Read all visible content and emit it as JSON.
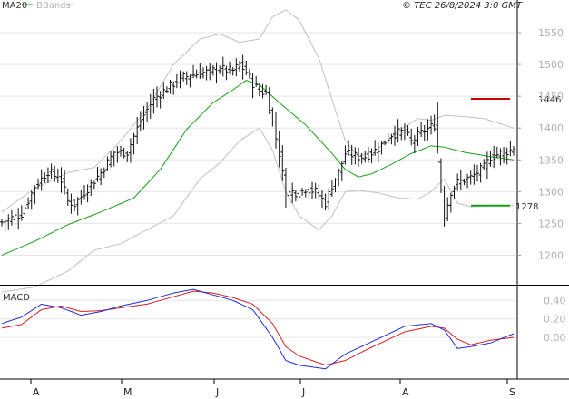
{
  "header": {
    "legend_ma": "MA20",
    "legend_bb": "BBands",
    "copyright": "© TEC 26/8/2024 3:0 GMT"
  },
  "colors": {
    "price": "#111111",
    "ma20": "#19a019",
    "bbands": "#c0c0c0",
    "grid": "#e6e6e6",
    "resistance": "#cc0000",
    "support": "#19a019",
    "macd": "#1f2fd6",
    "signal": "#d61f1f"
  },
  "chart_data": [
    {
      "type": "ohlc",
      "x_ticks": [
        "A",
        "M",
        "J",
        "J",
        "A",
        "S"
      ],
      "y_ticks": [
        1200,
        1250,
        1300,
        1350,
        1400,
        1450,
        1500,
        1550
      ],
      "ylim": [
        1155,
        1580
      ],
      "levels": [
        {
          "label": "1446",
          "value": 1446,
          "kind": "resistance"
        },
        {
          "label": "1278",
          "value": 1278,
          "kind": "support"
        }
      ],
      "price_anchors": [
        [
          0,
          1252
        ],
        [
          6,
          1265
        ],
        [
          10,
          1308
        ],
        [
          14,
          1332
        ],
        [
          18,
          1318
        ],
        [
          20,
          1285
        ],
        [
          22,
          1280
        ],
        [
          26,
          1305
        ],
        [
          30,
          1330
        ],
        [
          34,
          1362
        ],
        [
          38,
          1362
        ],
        [
          42,
          1412
        ],
        [
          46,
          1446
        ],
        [
          50,
          1462
        ],
        [
          54,
          1478
        ],
        [
          58,
          1484
        ],
        [
          62,
          1488
        ],
        [
          66,
          1493
        ],
        [
          70,
          1490
        ],
        [
          72,
          1500
        ],
        [
          74,
          1488
        ],
        [
          76,
          1470
        ],
        [
          78,
          1458
        ],
        [
          80,
          1455
        ],
        [
          82,
          1408
        ],
        [
          84,
          1360
        ],
        [
          86,
          1295
        ],
        [
          88,
          1300
        ],
        [
          90,
          1298
        ],
        [
          92,
          1305
        ],
        [
          95,
          1300
        ],
        [
          98,
          1282
        ],
        [
          100,
          1310
        ],
        [
          102,
          1330
        ],
        [
          104,
          1360
        ],
        [
          108,
          1355
        ],
        [
          110,
          1355
        ],
        [
          114,
          1368
        ],
        [
          118,
          1390
        ],
        [
          122,
          1395
        ],
        [
          124,
          1378
        ],
        [
          126,
          1388
        ],
        [
          128,
          1396
        ],
        [
          130,
          1402
        ],
        [
          131,
          1405
        ],
        [
          132,
          1348
        ],
        [
          134,
          1262
        ],
        [
          136,
          1300
        ],
        [
          138,
          1315
        ],
        [
          142,
          1322
        ],
        [
          146,
          1338
        ],
        [
          148,
          1355
        ],
        [
          152,
          1362
        ],
        [
          154,
          1365
        ],
        [
          155,
          1370
        ]
      ],
      "ma20_anchors": [
        [
          0,
          1200
        ],
        [
          10,
          1222
        ],
        [
          20,
          1248
        ],
        [
          30,
          1268
        ],
        [
          40,
          1290
        ],
        [
          48,
          1335
        ],
        [
          56,
          1398
        ],
        [
          64,
          1440
        ],
        [
          70,
          1460
        ],
        [
          74,
          1475
        ],
        [
          78,
          1468
        ],
        [
          84,
          1440
        ],
        [
          92,
          1405
        ],
        [
          100,
          1360
        ],
        [
          104,
          1335
        ],
        [
          108,
          1323
        ],
        [
          112,
          1328
        ],
        [
          118,
          1343
        ],
        [
          124,
          1360
        ],
        [
          130,
          1372
        ],
        [
          134,
          1370
        ],
        [
          140,
          1362
        ],
        [
          148,
          1355
        ],
        [
          155,
          1350
        ]
      ],
      "bb_upper_anchors": [
        [
          0,
          1268
        ],
        [
          10,
          1305
        ],
        [
          20,
          1330
        ],
        [
          28,
          1338
        ],
        [
          36,
          1380
        ],
        [
          44,
          1430
        ],
        [
          52,
          1500
        ],
        [
          60,
          1540
        ],
        [
          66,
          1548
        ],
        [
          72,
          1535
        ],
        [
          78,
          1540
        ],
        [
          82,
          1575
        ],
        [
          86,
          1586
        ],
        [
          90,
          1570
        ],
        [
          96,
          1510
        ],
        [
          100,
          1445
        ],
        [
          104,
          1380
        ],
        [
          108,
          1355
        ],
        [
          114,
          1368
        ],
        [
          120,
          1395
        ],
        [
          126,
          1415
        ],
        [
          130,
          1412
        ],
        [
          134,
          1420
        ],
        [
          140,
          1418
        ],
        [
          146,
          1415
        ],
        [
          155,
          1400
        ]
      ],
      "bb_lower_anchors": [
        [
          0,
          1142
        ],
        [
          10,
          1150
        ],
        [
          20,
          1175
        ],
        [
          28,
          1208
        ],
        [
          36,
          1218
        ],
        [
          44,
          1240
        ],
        [
          52,
          1262
        ],
        [
          60,
          1320
        ],
        [
          66,
          1345
        ],
        [
          72,
          1380
        ],
        [
          78,
          1400
        ],
        [
          82,
          1365
        ],
        [
          86,
          1300
        ],
        [
          90,
          1262
        ],
        [
          96,
          1240
        ],
        [
          100,
          1262
        ],
        [
          104,
          1300
        ],
        [
          108,
          1302
        ],
        [
          114,
          1298
        ],
        [
          120,
          1290
        ],
        [
          126,
          1288
        ],
        [
          130,
          1300
        ],
        [
          134,
          1320
        ],
        [
          138,
          1282
        ],
        [
          142,
          1276
        ],
        [
          148,
          1278
        ],
        [
          155,
          1278
        ]
      ]
    },
    {
      "type": "line",
      "title": "MACD",
      "y_ticks": [
        "0.40",
        "0.20",
        "0.00"
      ],
      "y_tick_values": [
        40,
        20,
        0
      ],
      "ylim": [
        -45,
        55
      ],
      "macd_anchors": [
        [
          0,
          15
        ],
        [
          6,
          22
        ],
        [
          12,
          36
        ],
        [
          18,
          32
        ],
        [
          24,
          24
        ],
        [
          30,
          28
        ],
        [
          36,
          34
        ],
        [
          44,
          40
        ],
        [
          52,
          48
        ],
        [
          58,
          52
        ],
        [
          64,
          46
        ],
        [
          70,
          40
        ],
        [
          76,
          30
        ],
        [
          82,
          0
        ],
        [
          86,
          -25
        ],
        [
          90,
          -30
        ],
        [
          98,
          -34
        ],
        [
          104,
          -18
        ],
        [
          110,
          -8
        ],
        [
          116,
          2
        ],
        [
          122,
          12
        ],
        [
          130,
          15
        ],
        [
          134,
          8
        ],
        [
          138,
          -12
        ],
        [
          142,
          -10
        ],
        [
          148,
          -6
        ],
        [
          155,
          4
        ]
      ],
      "signal_anchors": [
        [
          0,
          10
        ],
        [
          6,
          14
        ],
        [
          12,
          30
        ],
        [
          18,
          34
        ],
        [
          24,
          28
        ],
        [
          30,
          29
        ],
        [
          36,
          32
        ],
        [
          44,
          36
        ],
        [
          52,
          44
        ],
        [
          58,
          50
        ],
        [
          64,
          48
        ],
        [
          70,
          43
        ],
        [
          76,
          36
        ],
        [
          82,
          15
        ],
        [
          86,
          -10
        ],
        [
          90,
          -20
        ],
        [
          98,
          -30
        ],
        [
          104,
          -25
        ],
        [
          110,
          -14
        ],
        [
          116,
          -4
        ],
        [
          122,
          6
        ],
        [
          130,
          12
        ],
        [
          134,
          10
        ],
        [
          138,
          -2
        ],
        [
          142,
          -8
        ],
        [
          148,
          -3
        ],
        [
          155,
          0
        ]
      ]
    }
  ]
}
